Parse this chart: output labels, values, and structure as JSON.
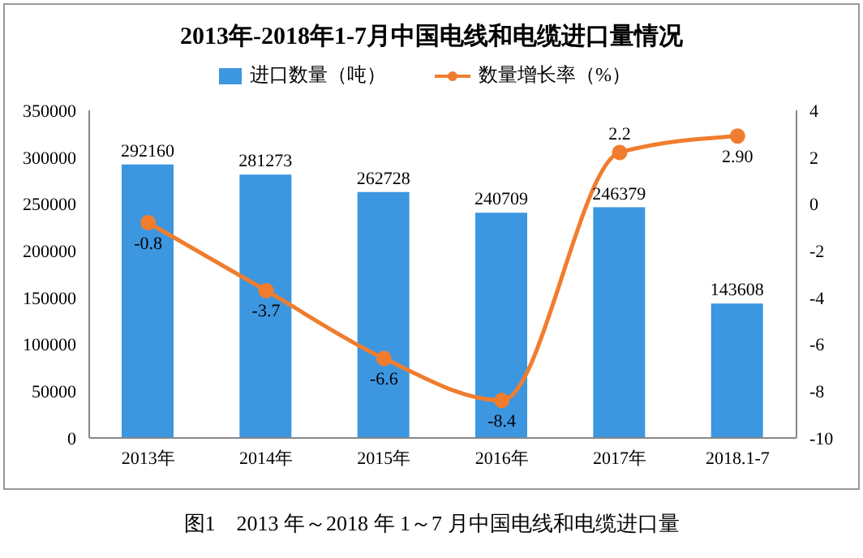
{
  "chart_data": {
    "type": "bar",
    "title": "2013年-2018年1-7月中国电线和电缆进口量情况",
    "categories": [
      "2013年",
      "2014年",
      "2015年",
      "2016年",
      "2017年",
      "2018.1-7"
    ],
    "series": [
      {
        "name": "进口数量（吨）",
        "color": "#3d96e0",
        "values": [
          292160,
          281273,
          262728,
          240709,
          246379,
          143608
        ],
        "value_labels": [
          "292160",
          "281273",
          "262728",
          "240709",
          "246379",
          "143608"
        ]
      },
      {
        "name": "数量增长率（%）",
        "type": "line",
        "axis": "y2",
        "color": "#f07d2e",
        "marker": "circle",
        "values": [
          -0.8,
          -3.7,
          -6.6,
          -8.4,
          2.2,
          2.9
        ],
        "value_labels": [
          "-0.8",
          "-3.7",
          "-6.6",
          "-8.4",
          "2.2",
          "2.90"
        ]
      }
    ],
    "ylim": [
      0,
      350000
    ],
    "yticks": [
      0,
      50000,
      100000,
      150000,
      200000,
      250000,
      300000,
      350000
    ],
    "y2lim": [
      -10,
      4
    ],
    "y2ticks": [
      -10,
      -8,
      -6,
      -4,
      -2,
      0,
      2,
      4
    ],
    "grid": false,
    "legend": "top",
    "annotations": [
      "图1　2013 年～2018 年 1～7 月中国电线和电缆进口量"
    ]
  }
}
